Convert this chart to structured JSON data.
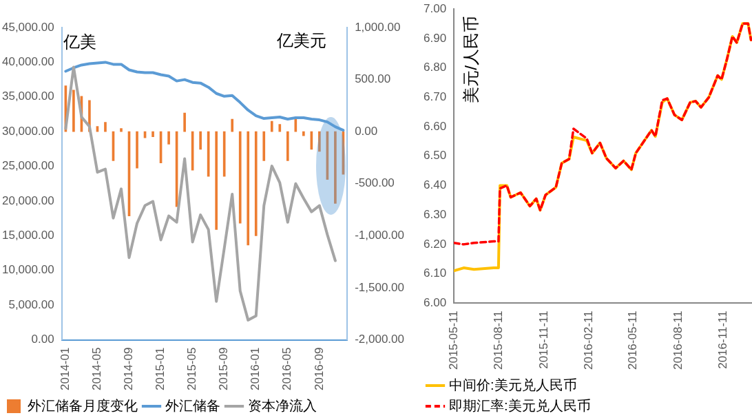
{
  "chart_data": [
    {
      "type": "bar",
      "ylabel": "亿美",
      "y2label": "亿美元",
      "categories": [
        "2014-01",
        null,
        null,
        null,
        "2014-05",
        null,
        null,
        null,
        "2014-09",
        null,
        null,
        null,
        "2015-01",
        null,
        null,
        null,
        "2015-05",
        null,
        null,
        null,
        "2015-09",
        null,
        null,
        null,
        "2016-01",
        null,
        null,
        null,
        "2016-05",
        null,
        null,
        null,
        "2016-09",
        null,
        null,
        null
      ],
      "series": [
        {
          "name": "外汇储备月度变化",
          "type": "bar",
          "axis": "y2",
          "color": "#ed7d31",
          "values": [
            440,
            400,
            340,
            300,
            50,
            90,
            -280,
            30,
            -810,
            -350,
            -60,
            -50,
            -300,
            -120,
            -720,
            180,
            -370,
            -170,
            -430,
            -940,
            -430,
            120,
            -880,
            -1090,
            -1000,
            -280,
            100,
            70,
            -280,
            120,
            -40,
            -170,
            -190,
            -460,
            -690,
            -410
          ]
        },
        {
          "name": "外汇储备",
          "type": "line",
          "color": "#5b9bd5",
          "values": [
            38700,
            39200,
            39600,
            39800,
            39900,
            40000,
            39700,
            39700,
            38900,
            38600,
            38500,
            38500,
            38200,
            38000,
            37300,
            37500,
            37100,
            37000,
            36400,
            35500,
            35100,
            35200,
            34200,
            33100,
            32300,
            31900,
            32000,
            32100,
            31800,
            32000,
            32000,
            31800,
            31700,
            31400,
            30700,
            30200
          ]
        },
        {
          "name": "资本净流入",
          "type": "line",
          "axis": "y2",
          "color": "#a5a5a5",
          "values": [
            30,
            620,
            140,
            50,
            -390,
            -360,
            -830,
            -550,
            -1210,
            -880,
            -710,
            -670,
            -1040,
            -810,
            -870,
            -260,
            -1060,
            -800,
            -940,
            -1630,
            -1120,
            -600,
            -1530,
            -1810,
            -1770,
            -710,
            -330,
            -490,
            -870,
            -500,
            -640,
            -770,
            -710,
            -990,
            -1240,
            null
          ]
        }
      ],
      "ylim": [
        0,
        45000
      ],
      "yticks": [
        {
          "value": 0,
          "label": "0.00"
        },
        {
          "value": 5000,
          "label": "5,000.00"
        },
        {
          "value": 10000,
          "label": "10,000.00"
        },
        {
          "value": 15000,
          "label": "15,000.00"
        },
        {
          "value": 20000,
          "label": "20,000.00"
        },
        {
          "value": 25000,
          "label": "25,000.00"
        },
        {
          "value": 30000,
          "label": "30,000.00"
        },
        {
          "value": 35000,
          "label": "35,000.00"
        },
        {
          "value": 40000,
          "label": "40,000.00"
        },
        {
          "value": 45000,
          "label": "45,000.00"
        }
      ],
      "y2lim": [
        -2000,
        1000
      ],
      "y2ticks": [
        {
          "value": -2000,
          "label": "-2,000.00"
        },
        {
          "value": -1500,
          "label": "-1,500.00"
        },
        {
          "value": -1000,
          "label": "-1,000.00"
        },
        {
          "value": -500,
          "label": "-500.00"
        },
        {
          "value": 0,
          "label": "0.00"
        },
        {
          "value": 500,
          "label": "500.00"
        },
        {
          "value": 1000,
          "label": "1,000.00"
        }
      ],
      "grid": false,
      "legend": "bottom",
      "marker": "none"
    },
    {
      "type": "line",
      "ylabel": "美元/人民币",
      "x": [
        "2015-05-11",
        "2015-05-31",
        "2015-06-21",
        "2015-07-31",
        "2015-08-10",
        "2015-08-13",
        "2015-08-27",
        "2015-09-04",
        "2015-09-24",
        "2015-10-13",
        "2015-10-26",
        "2015-11-03",
        "2015-11-14",
        "2015-12-05",
        "2015-12-17",
        "2016-01-01",
        "2016-01-10",
        "2016-02-06",
        "2016-02-17",
        "2016-03-04",
        "2016-03-17",
        "2016-04-05",
        "2016-04-21",
        "2016-05-07",
        "2016-05-16",
        "2016-06-17",
        "2016-06-25",
        "2016-07-09",
        "2016-07-19",
        "2016-08-03",
        "2016-08-18",
        "2016-09-04",
        "2016-09-15",
        "2016-09-26",
        "2016-10-12",
        "2016-10-30",
        "2016-11-07",
        "2016-11-18",
        "2016-11-29",
        "2016-12-08",
        "2016-12-20",
        "2016-12-31",
        "2017-01-06"
      ],
      "series": [
        {
          "name": "中间价:美元兑人民币",
          "color": "#ffc000",
          "values": [
            6.11,
            6.12,
            6.115,
            6.12,
            6.12,
            6.4,
            6.4,
            6.36,
            6.376,
            6.33,
            6.355,
            6.316,
            6.368,
            6.394,
            6.476,
            6.49,
            6.565,
            6.553,
            6.51,
            6.545,
            6.493,
            6.459,
            6.484,
            6.454,
            6.51,
            6.588,
            6.567,
            6.683,
            6.696,
            6.64,
            6.623,
            6.683,
            6.687,
            6.666,
            6.7,
            6.774,
            6.761,
            6.83,
            6.907,
            6.886,
            6.951,
            6.951,
            6.895
          ]
        },
        {
          "name": "即期汇率:美元兑人民币",
          "color": "#ff0000",
          "line_style": "dashed",
          "values": [
            6.205,
            6.2,
            6.205,
            6.21,
            6.21,
            6.39,
            6.4,
            6.36,
            6.376,
            6.33,
            6.355,
            6.316,
            6.368,
            6.394,
            6.476,
            6.49,
            6.593,
            6.56,
            6.51,
            6.545,
            6.493,
            6.459,
            6.484,
            6.454,
            6.51,
            6.588,
            6.567,
            6.69,
            6.696,
            6.64,
            6.623,
            6.683,
            6.687,
            6.666,
            6.7,
            6.774,
            6.761,
            6.83,
            6.907,
            6.886,
            6.951,
            6.951,
            6.895
          ]
        }
      ],
      "xlim": [
        "2015-05-11",
        "2017-01-08"
      ],
      "xticks": [
        "2015-05-11",
        "2015-08-11",
        "2015-11-11",
        "2016-02-11",
        "2016-05-11",
        "2016-08-11",
        "2016-11-11"
      ],
      "ylim": [
        6,
        7
      ],
      "yticks": [
        {
          "value": 6,
          "label": "6.00"
        },
        {
          "value": 6.1,
          "label": "6.10"
        },
        {
          "value": 6.2,
          "label": "6.20"
        },
        {
          "value": 6.3,
          "label": "6.30"
        },
        {
          "value": 6.4,
          "label": "6.40"
        },
        {
          "value": 6.5,
          "label": "6.50"
        },
        {
          "value": 6.6,
          "label": "6.60"
        },
        {
          "value": 6.7,
          "label": "6.70"
        },
        {
          "value": 6.8,
          "label": "6.80"
        },
        {
          "value": 6.9,
          "label": "6.90"
        },
        {
          "value": 7,
          "label": "7.00"
        }
      ],
      "grid": false,
      "legend": "bottom",
      "marker": "none"
    }
  ]
}
